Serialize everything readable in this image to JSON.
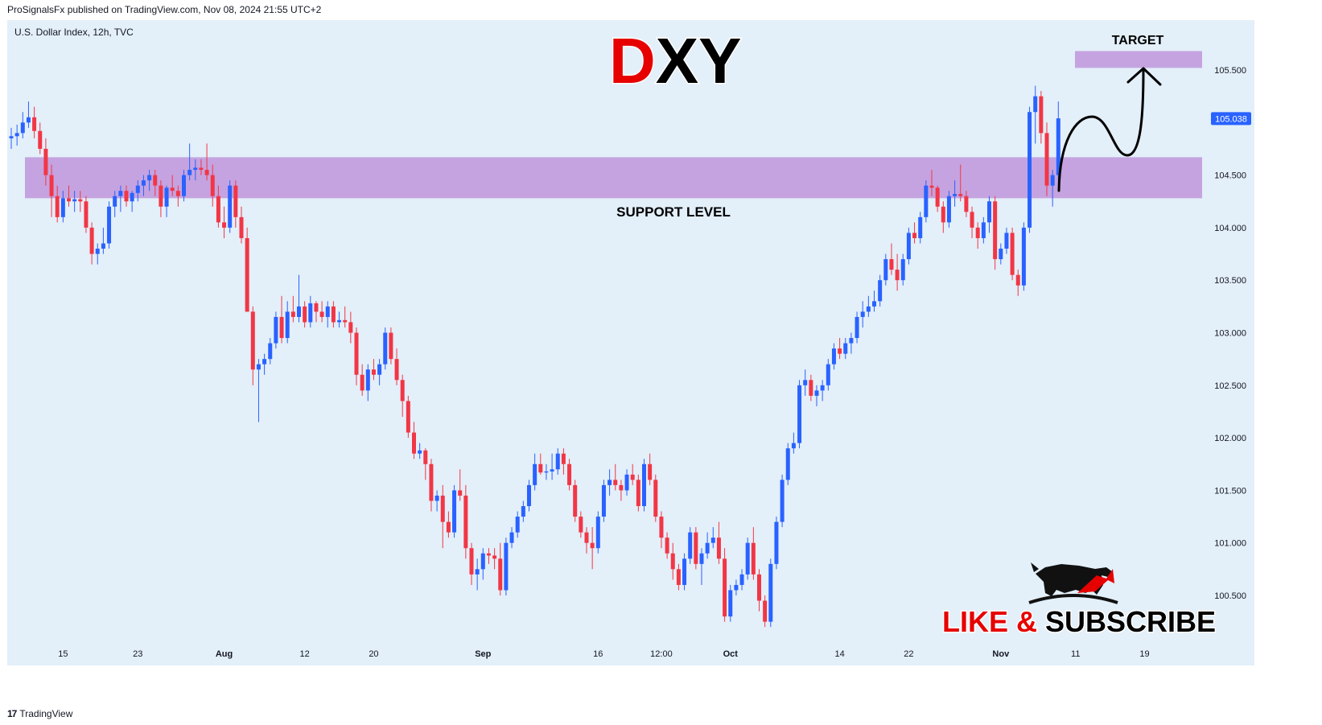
{
  "header": {
    "published": "ProSignalsFx published on TradingView.com, Nov 08, 2024 21:55 UTC+2"
  },
  "symbol_line": "U.S. Dollar Index, 12h, TVC",
  "title": {
    "part1": "D",
    "part2": "XY"
  },
  "labels": {
    "target": "TARGET",
    "support": "SUPPORT LEVEL",
    "cta_part1": "LIKE &",
    "cta_part2": "SUBSCRIBE"
  },
  "footer": {
    "brand": "TradingView",
    "logo": "17"
  },
  "colors": {
    "up": "#2962ff",
    "down": "#f23645",
    "zone": "#c5a3e0",
    "background": "#e3eff9",
    "title_red": "#e60000"
  },
  "current_price": "105.038",
  "chart_data": {
    "type": "candlestick",
    "ylim": [
      100.15,
      105.85
    ],
    "y_ticks": [
      "100.500",
      "101.000",
      "101.500",
      "102.000",
      "102.500",
      "103.000",
      "103.500",
      "104.000",
      "104.500",
      "105.500"
    ],
    "x_ticks": [
      "15",
      "23",
      "Aug",
      "12",
      "20",
      "Sep",
      "16",
      "12:00",
      "Oct",
      "14",
      "22",
      "Nov",
      "11",
      "19"
    ],
    "x_tick_index": [
      9,
      22,
      37,
      51,
      63,
      82,
      102,
      113,
      125,
      144,
      156,
      172,
      185,
      197
    ],
    "zones": [
      {
        "name": "support",
        "from": 104.28,
        "to": 104.67
      },
      {
        "name": "target",
        "from": 105.52,
        "to": 105.68
      }
    ],
    "candles": [
      [
        104.85,
        104.95,
        104.75,
        104.87
      ],
      [
        104.87,
        104.98,
        104.78,
        104.9
      ],
      [
        104.9,
        105.1,
        104.85,
        105.0
      ],
      [
        105.0,
        105.2,
        104.95,
        105.05
      ],
      [
        105.05,
        105.15,
        104.85,
        104.92
      ],
      [
        104.92,
        105.0,
        104.7,
        104.75
      ],
      [
        104.75,
        104.85,
        104.4,
        104.5
      ],
      [
        104.5,
        104.6,
        104.1,
        104.3
      ],
      [
        104.3,
        104.4,
        104.05,
        104.1
      ],
      [
        104.1,
        104.35,
        104.05,
        104.28
      ],
      [
        104.28,
        104.4,
        104.2,
        104.25
      ],
      [
        104.25,
        104.35,
        104.15,
        104.27
      ],
      [
        104.27,
        104.35,
        104.15,
        104.25
      ],
      [
        104.25,
        104.3,
        103.95,
        104.0
      ],
      [
        104.0,
        104.05,
        103.65,
        103.75
      ],
      [
        103.75,
        103.85,
        103.65,
        103.8
      ],
      [
        103.8,
        104.0,
        103.75,
        103.85
      ],
      [
        103.85,
        104.25,
        103.8,
        104.2
      ],
      [
        104.2,
        104.35,
        104.1,
        104.3
      ],
      [
        104.3,
        104.4,
        104.15,
        104.35
      ],
      [
        104.35,
        104.4,
        104.2,
        104.25
      ],
      [
        104.25,
        104.35,
        104.15,
        104.33
      ],
      [
        104.33,
        104.45,
        104.25,
        104.4
      ],
      [
        104.4,
        104.5,
        104.3,
        104.45
      ],
      [
        104.45,
        104.55,
        104.35,
        104.5
      ],
      [
        104.5,
        104.55,
        104.3,
        104.4
      ],
      [
        104.4,
        104.45,
        104.1,
        104.2
      ],
      [
        104.2,
        104.4,
        104.1,
        104.38
      ],
      [
        104.38,
        104.5,
        104.3,
        104.35
      ],
      [
        104.35,
        104.4,
        104.2,
        104.3
      ],
      [
        104.3,
        104.55,
        104.25,
        104.5
      ],
      [
        104.5,
        104.8,
        104.45,
        104.55
      ],
      [
        104.55,
        104.65,
        104.45,
        104.57
      ],
      [
        104.57,
        104.65,
        104.5,
        104.55
      ],
      [
        104.55,
        104.8,
        104.45,
        104.5
      ],
      [
        104.5,
        104.6,
        104.2,
        104.3
      ],
      [
        104.3,
        104.4,
        104.0,
        104.05
      ],
      [
        104.05,
        104.2,
        103.9,
        104.0
      ],
      [
        104.0,
        104.45,
        103.95,
        104.4
      ],
      [
        104.4,
        104.45,
        104.0,
        104.1
      ],
      [
        104.1,
        104.2,
        103.85,
        103.9
      ],
      [
        103.9,
        104.0,
        103.2,
        103.2
      ],
      [
        103.2,
        103.25,
        102.5,
        102.65
      ],
      [
        102.65,
        102.75,
        102.15,
        102.7
      ],
      [
        102.7,
        102.8,
        102.6,
        102.75
      ],
      [
        102.75,
        102.95,
        102.7,
        102.9
      ],
      [
        102.9,
        103.2,
        102.85,
        103.15
      ],
      [
        103.15,
        103.35,
        102.9,
        102.95
      ],
      [
        102.95,
        103.3,
        102.9,
        103.2
      ],
      [
        103.2,
        103.35,
        103.1,
        103.15
      ],
      [
        103.15,
        103.55,
        103.1,
        103.25
      ],
      [
        103.25,
        103.3,
        103.05,
        103.1
      ],
      [
        103.1,
        103.35,
        103.05,
        103.28
      ],
      [
        103.28,
        103.3,
        103.1,
        103.2
      ],
      [
        103.2,
        103.3,
        103.1,
        103.15
      ],
      [
        103.15,
        103.3,
        103.05,
        103.25
      ],
      [
        103.25,
        103.3,
        103.05,
        103.1
      ],
      [
        103.1,
        103.2,
        103.05,
        103.12
      ],
      [
        103.12,
        103.25,
        103.05,
        103.1
      ],
      [
        103.1,
        103.2,
        102.9,
        103.0
      ],
      [
        103.0,
        103.05,
        102.5,
        102.6
      ],
      [
        102.6,
        102.7,
        102.4,
        102.45
      ],
      [
        102.45,
        102.7,
        102.35,
        102.65
      ],
      [
        102.65,
        102.75,
        102.55,
        102.6
      ],
      [
        102.6,
        102.75,
        102.5,
        102.7
      ],
      [
        102.7,
        103.05,
        102.65,
        103.0
      ],
      [
        103.0,
        103.05,
        102.7,
        102.75
      ],
      [
        102.75,
        102.85,
        102.5,
        102.55
      ],
      [
        102.55,
        102.6,
        102.2,
        102.35
      ],
      [
        102.35,
        102.4,
        102.0,
        102.05
      ],
      [
        102.05,
        102.15,
        101.8,
        101.85
      ],
      [
        101.85,
        101.95,
        101.8,
        101.88
      ],
      [
        101.88,
        101.9,
        101.6,
        101.75
      ],
      [
        101.75,
        101.8,
        101.3,
        101.4
      ],
      [
        101.4,
        101.5,
        101.3,
        101.45
      ],
      [
        101.45,
        101.55,
        100.95,
        101.2
      ],
      [
        101.2,
        101.3,
        101.05,
        101.1
      ],
      [
        101.1,
        101.55,
        101.05,
        101.5
      ],
      [
        101.5,
        101.7,
        101.4,
        101.45
      ],
      [
        101.45,
        101.55,
        100.85,
        100.95
      ],
      [
        100.95,
        101.0,
        100.6,
        100.7
      ],
      [
        100.7,
        100.85,
        100.55,
        100.75
      ],
      [
        100.75,
        100.95,
        100.65,
        100.9
      ],
      [
        100.9,
        100.95,
        100.8,
        100.88
      ],
      [
        100.88,
        100.95,
        100.75,
        100.85
      ],
      [
        100.85,
        101.0,
        100.5,
        100.55
      ],
      [
        100.55,
        101.05,
        100.5,
        101.0
      ],
      [
        101.0,
        101.15,
        100.95,
        101.1
      ],
      [
        101.1,
        101.3,
        101.05,
        101.25
      ],
      [
        101.25,
        101.4,
        101.2,
        101.35
      ],
      [
        101.35,
        101.6,
        101.3,
        101.55
      ],
      [
        101.55,
        101.85,
        101.5,
        101.75
      ],
      [
        101.75,
        101.85,
        101.65,
        101.67
      ],
      [
        101.67,
        101.75,
        101.6,
        101.68
      ],
      [
        101.68,
        101.85,
        101.6,
        101.7
      ],
      [
        101.7,
        101.9,
        101.65,
        101.85
      ],
      [
        101.85,
        101.9,
        101.65,
        101.75
      ],
      [
        101.75,
        101.8,
        101.5,
        101.55
      ],
      [
        101.55,
        101.6,
        101.2,
        101.25
      ],
      [
        101.25,
        101.3,
        101.05,
        101.1
      ],
      [
        101.1,
        101.15,
        100.9,
        101.0
      ],
      [
        101.0,
        101.15,
        100.75,
        100.95
      ],
      [
        100.95,
        101.3,
        100.9,
        101.25
      ],
      [
        101.25,
        101.6,
        101.2,
        101.55
      ],
      [
        101.55,
        101.7,
        101.45,
        101.6
      ],
      [
        101.6,
        101.75,
        101.5,
        101.55
      ],
      [
        101.55,
        101.6,
        101.4,
        101.5
      ],
      [
        101.5,
        101.7,
        101.45,
        101.65
      ],
      [
        101.65,
        101.75,
        101.55,
        101.6
      ],
      [
        101.6,
        101.65,
        101.3,
        101.35
      ],
      [
        101.35,
        101.8,
        101.3,
        101.75
      ],
      [
        101.75,
        101.85,
        101.55,
        101.6
      ],
      [
        101.6,
        101.65,
        101.2,
        101.25
      ],
      [
        101.25,
        101.3,
        100.95,
        101.05
      ],
      [
        101.05,
        101.1,
        100.85,
        100.9
      ],
      [
        100.9,
        101.0,
        100.65,
        100.75
      ],
      [
        100.75,
        100.8,
        100.55,
        100.6
      ],
      [
        100.6,
        100.9,
        100.55,
        100.85
      ],
      [
        100.85,
        101.15,
        100.8,
        101.1
      ],
      [
        101.1,
        101.15,
        100.75,
        100.8
      ],
      [
        100.8,
        100.95,
        100.6,
        100.9
      ],
      [
        100.9,
        101.1,
        100.85,
        101.0
      ],
      [
        101.0,
        101.15,
        100.95,
        101.05
      ],
      [
        101.05,
        101.2,
        100.8,
        100.85
      ],
      [
        100.85,
        100.95,
        100.25,
        100.3
      ],
      [
        100.3,
        100.6,
        100.25,
        100.55
      ],
      [
        100.55,
        100.65,
        100.5,
        100.6
      ],
      [
        100.6,
        100.75,
        100.55,
        100.7
      ],
      [
        100.7,
        101.05,
        100.65,
        101.0
      ],
      [
        101.0,
        101.15,
        100.65,
        100.7
      ],
      [
        100.7,
        100.75,
        100.35,
        100.45
      ],
      [
        100.45,
        100.5,
        100.2,
        100.25
      ],
      [
        100.25,
        100.85,
        100.2,
        100.8
      ],
      [
        100.8,
        101.25,
        100.75,
        101.2
      ],
      [
        101.2,
        101.65,
        101.15,
        101.6
      ],
      [
        101.6,
        101.95,
        101.55,
        101.9
      ],
      [
        101.9,
        102.05,
        101.85,
        101.95
      ],
      [
        101.95,
        102.55,
        101.9,
        102.5
      ],
      [
        102.5,
        102.65,
        102.4,
        102.55
      ],
      [
        102.55,
        102.6,
        102.35,
        102.4
      ],
      [
        102.4,
        102.5,
        102.3,
        102.45
      ],
      [
        102.45,
        102.55,
        102.35,
        102.5
      ],
      [
        102.5,
        102.75,
        102.45,
        102.7
      ],
      [
        102.7,
        102.9,
        102.65,
        102.85
      ],
      [
        102.85,
        102.95,
        102.75,
        102.8
      ],
      [
        102.8,
        102.95,
        102.75,
        102.9
      ],
      [
        102.9,
        103.0,
        102.8,
        102.95
      ],
      [
        102.95,
        103.2,
        102.9,
        103.15
      ],
      [
        103.15,
        103.3,
        103.05,
        103.2
      ],
      [
        103.2,
        103.35,
        103.15,
        103.25
      ],
      [
        103.25,
        103.4,
        103.2,
        103.3
      ],
      [
        103.3,
        103.55,
        103.25,
        103.5
      ],
      [
        103.5,
        103.75,
        103.45,
        103.7
      ],
      [
        103.7,
        103.85,
        103.55,
        103.6
      ],
      [
        103.6,
        103.75,
        103.4,
        103.5
      ],
      [
        103.5,
        103.75,
        103.45,
        103.7
      ],
      [
        103.7,
        104.0,
        103.65,
        103.95
      ],
      [
        103.95,
        104.05,
        103.85,
        103.9
      ],
      [
        103.9,
        104.15,
        103.85,
        104.1
      ],
      [
        104.1,
        104.45,
        104.05,
        104.4
      ],
      [
        104.4,
        104.55,
        104.3,
        104.38
      ],
      [
        104.38,
        104.4,
        104.15,
        104.2
      ],
      [
        104.2,
        104.25,
        103.95,
        104.05
      ],
      [
        104.05,
        104.35,
        104.0,
        104.3
      ],
      [
        104.3,
        104.45,
        104.2,
        104.32
      ],
      [
        104.32,
        104.6,
        104.25,
        104.3
      ],
      [
        104.3,
        104.35,
        104.1,
        104.15
      ],
      [
        104.15,
        104.2,
        103.9,
        104.0
      ],
      [
        104.0,
        104.05,
        103.8,
        103.9
      ],
      [
        103.9,
        104.1,
        103.85,
        104.05
      ],
      [
        104.05,
        104.3,
        103.95,
        104.25
      ],
      [
        104.25,
        104.3,
        103.6,
        103.7
      ],
      [
        103.7,
        103.85,
        103.65,
        103.8
      ],
      [
        103.8,
        104.0,
        103.75,
        103.95
      ],
      [
        103.95,
        104.0,
        103.5,
        103.55
      ],
      [
        103.55,
        103.6,
        103.35,
        103.45
      ],
      [
        103.45,
        104.05,
        103.4,
        104.0
      ],
      [
        104.0,
        105.15,
        103.95,
        105.1
      ],
      [
        105.1,
        105.35,
        104.8,
        105.25
      ],
      [
        105.25,
        105.3,
        104.8,
        104.9
      ],
      [
        104.9,
        105.0,
        104.3,
        104.4
      ],
      [
        104.4,
        104.55,
        104.2,
        104.5
      ],
      [
        104.5,
        105.2,
        104.45,
        105.04
      ]
    ]
  }
}
